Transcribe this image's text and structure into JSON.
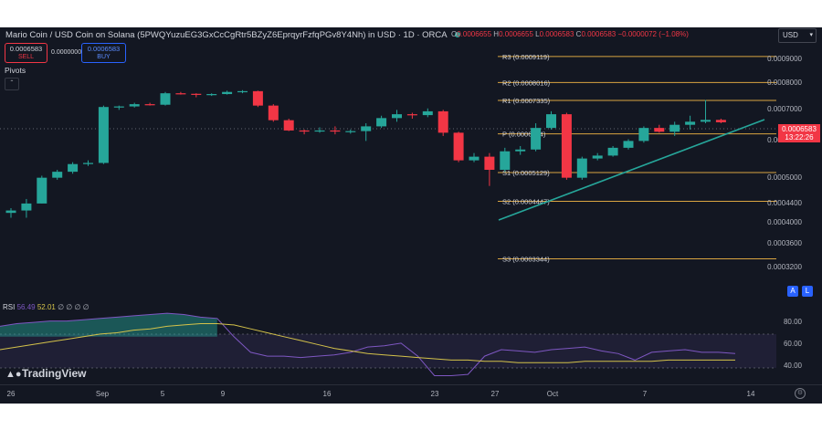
{
  "header": {
    "title": "Mario Coin / USD Coin on Solana (5PWQYuzuEG3GxCcCgRtr5BZyZ6EprqyrFzfqPGv8Y4Nh) in USD · 1D · ORCA",
    "ohlc": {
      "o_label": "O",
      "o_value": "0.0006655",
      "h_label": "H",
      "h_value": "0.0006655",
      "l_label": "L",
      "l_value": "0.0006583",
      "c_label": "C",
      "c_value": "0.0006583",
      "change": "−0.0000072 (−1.08%)"
    },
    "currency": "USD"
  },
  "trade": {
    "sell_price": "0.0006583",
    "sell_label": "SELL",
    "spread": "0.0000000",
    "buy_price": "0.0006583",
    "buy_label": "BUY"
  },
  "indicator": {
    "name": "Pivots",
    "collapse_icon": "chevron-up-icon"
  },
  "price_axis": {
    "labels": [
      "0.0009000",
      "0.0008000",
      "0.0007000",
      "0.0006000",
      "0.0005000",
      "0.0004400",
      "0.0004000",
      "0.0003600",
      "0.0003200"
    ],
    "current_price": "0.0006583",
    "countdown": "13:22:26",
    "badge_a": "A",
    "badge_l": "L"
  },
  "pivots": [
    {
      "label": "R3 (0.0009119)",
      "value": 0.0009119
    },
    {
      "label": "R2 (0.0008016)",
      "value": 0.0008016
    },
    {
      "label": "R1 (0.0007335)",
      "value": 0.0007335
    },
    {
      "label": "P (0.0006214)",
      "value": 0.0006214
    },
    {
      "label": "S1 (0.0005129)",
      "value": 0.0005129
    },
    {
      "label": "S2 (0.0004447)",
      "value": 0.0004447
    },
    {
      "label": "S3 (0.0003344)",
      "value": 0.0003344
    }
  ],
  "rsi": {
    "label": "RSI",
    "value": "56.49",
    "ma_value": "52.01",
    "extra": "∅ ∅ ∅ ∅",
    "axis": [
      "80.00",
      "60.00",
      "40.00"
    ],
    "rsi_series": [
      78,
      80,
      81,
      82,
      82,
      83,
      84,
      85,
      86,
      87,
      88,
      87,
      85,
      84,
      70,
      58,
      55,
      55,
      54,
      55,
      56,
      58,
      62,
      63,
      65,
      55,
      40,
      40,
      41,
      55,
      60,
      59,
      58,
      60,
      61,
      62,
      59,
      57,
      52,
      58,
      59,
      60,
      58,
      58,
      57
    ],
    "ma_series": [
      60,
      62,
      64,
      66,
      68,
      70,
      72,
      73,
      75,
      76,
      78,
      79,
      80,
      80,
      79,
      76,
      73,
      70,
      67,
      64,
      61,
      59,
      57,
      56,
      55,
      54,
      53,
      52,
      52,
      51,
      51,
      50,
      50,
      50,
      50,
      51,
      51,
      51,
      51,
      51,
      52,
      52,
      52,
      52,
      52
    ]
  },
  "x_axis": {
    "labels": [
      "26",
      "Sep",
      "5",
      "9",
      "16",
      "23",
      "27",
      "Oct",
      "7",
      "14"
    ]
  },
  "branding": {
    "logo_text": "TradingView"
  },
  "colors": {
    "up": "#26a69a",
    "down": "#f23645",
    "pivot": "#d9a441",
    "trend": "#26a69a",
    "rsi": "#7e57c2",
    "rsi_ma": "#d4c24a",
    "bg": "#131722"
  },
  "chart_data": {
    "type": "candlestick",
    "y_scale": "log",
    "ylim": [
      0.00029,
      0.00098
    ],
    "candles": [
      {
        "o": 0.00042,
        "h": 0.00043,
        "l": 0.00041,
        "c": 0.000425
      },
      {
        "o": 0.000425,
        "h": 0.00045,
        "l": 0.00041,
        "c": 0.00044
      },
      {
        "o": 0.00044,
        "h": 0.000505,
        "l": 0.00044,
        "c": 0.0005
      },
      {
        "o": 0.0005,
        "h": 0.00052,
        "l": 0.000495,
        "c": 0.000515
      },
      {
        "o": 0.000515,
        "h": 0.00054,
        "l": 0.00051,
        "c": 0.000535
      },
      {
        "o": 0.000535,
        "h": 0.000545,
        "l": 0.00053,
        "c": 0.000538
      },
      {
        "o": 0.000538,
        "h": 0.000715,
        "l": 0.000535,
        "c": 0.00071
      },
      {
        "o": 0.00071,
        "h": 0.000715,
        "l": 0.0007,
        "c": 0.000712
      },
      {
        "o": 0.000712,
        "h": 0.000725,
        "l": 0.000708,
        "c": 0.00072
      },
      {
        "o": 0.00072,
        "h": 0.000725,
        "l": 0.000715,
        "c": 0.000718
      },
      {
        "o": 0.000718,
        "h": 0.000765,
        "l": 0.000715,
        "c": 0.00076
      },
      {
        "o": 0.00076,
        "h": 0.000765,
        "l": 0.000755,
        "c": 0.000758
      },
      {
        "o": 0.000758,
        "h": 0.00076,
        "l": 0.000745,
        "c": 0.000755
      },
      {
        "o": 0.000755,
        "h": 0.00076,
        "l": 0.00075,
        "c": 0.000757
      },
      {
        "o": 0.000757,
        "h": 0.00077,
        "l": 0.000755,
        "c": 0.000765
      },
      {
        "o": 0.000765,
        "h": 0.000772,
        "l": 0.00076,
        "c": 0.000768
      },
      {
        "o": 0.000768,
        "h": 0.00077,
        "l": 0.00071,
        "c": 0.000715
      },
      {
        "o": 0.000715,
        "h": 0.00072,
        "l": 0.00066,
        "c": 0.000665
      },
      {
        "o": 0.000665,
        "h": 0.00067,
        "l": 0.00063,
        "c": 0.000632
      },
      {
        "o": 0.000632,
        "h": 0.000635,
        "l": 0.00062,
        "c": 0.00063
      },
      {
        "o": 0.00063,
        "h": 0.000642,
        "l": 0.000625,
        "c": 0.000632
      },
      {
        "o": 0.000632,
        "h": 0.000645,
        "l": 0.00062,
        "c": 0.00063
      },
      {
        "o": 0.00063,
        "h": 0.000635,
        "l": 0.000622,
        "c": 0.00063
      },
      {
        "o": 0.00063,
        "h": 0.000655,
        "l": 0.0006,
        "c": 0.000645
      },
      {
        "o": 0.000645,
        "h": 0.00068,
        "l": 0.00064,
        "c": 0.000672
      },
      {
        "o": 0.000672,
        "h": 0.0007,
        "l": 0.00066,
        "c": 0.000685
      },
      {
        "o": 0.000685,
        "h": 0.00069,
        "l": 0.00067,
        "c": 0.000682
      },
      {
        "o": 0.000682,
        "h": 0.000705,
        "l": 0.000675,
        "c": 0.000695
      },
      {
        "o": 0.000695,
        "h": 0.0007,
        "l": 0.000615,
        "c": 0.000625
      },
      {
        "o": 0.000625,
        "h": 0.000628,
        "l": 0.00054,
        "c": 0.000545
      },
      {
        "o": 0.000545,
        "h": 0.000565,
        "l": 0.00054,
        "c": 0.000555
      },
      {
        "o": 0.000555,
        "h": 0.000565,
        "l": 0.00048,
        "c": 0.00052
      },
      {
        "o": 0.00052,
        "h": 0.00058,
        "l": 0.000515,
        "c": 0.00057
      },
      {
        "o": 0.00057,
        "h": 0.000585,
        "l": 0.00056,
        "c": 0.000575
      },
      {
        "o": 0.000575,
        "h": 0.000655,
        "l": 0.00057,
        "c": 0.00064
      },
      {
        "o": 0.00064,
        "h": 0.000695,
        "l": 0.000635,
        "c": 0.000685
      },
      {
        "o": 0.000685,
        "h": 0.00069,
        "l": 0.000495,
        "c": 0.0005
      },
      {
        "o": 0.0005,
        "h": 0.000555,
        "l": 0.000495,
        "c": 0.00055
      },
      {
        "o": 0.00055,
        "h": 0.000565,
        "l": 0.000545,
        "c": 0.000558
      },
      {
        "o": 0.000558,
        "h": 0.000585,
        "l": 0.000555,
        "c": 0.00058
      },
      {
        "o": 0.00058,
        "h": 0.000605,
        "l": 0.000575,
        "c": 0.0006
      },
      {
        "o": 0.0006,
        "h": 0.000645,
        "l": 0.000595,
        "c": 0.00064
      },
      {
        "o": 0.00064,
        "h": 0.00065,
        "l": 0.000625,
        "c": 0.000628
      },
      {
        "o": 0.000628,
        "h": 0.00066,
        "l": 0.000615,
        "c": 0.00065
      },
      {
        "o": 0.00065,
        "h": 0.00068,
        "l": 0.000635,
        "c": 0.00066
      },
      {
        "o": 0.00066,
        "h": 0.000735,
        "l": 0.000655,
        "c": 0.000666
      },
      {
        "o": 0.000666,
        "h": 0.00067,
        "l": 0.000655,
        "c": 0.0006583
      }
    ],
    "trendline": [
      {
        "from": 0.00045,
        "to": 0.00069
      }
    ]
  }
}
